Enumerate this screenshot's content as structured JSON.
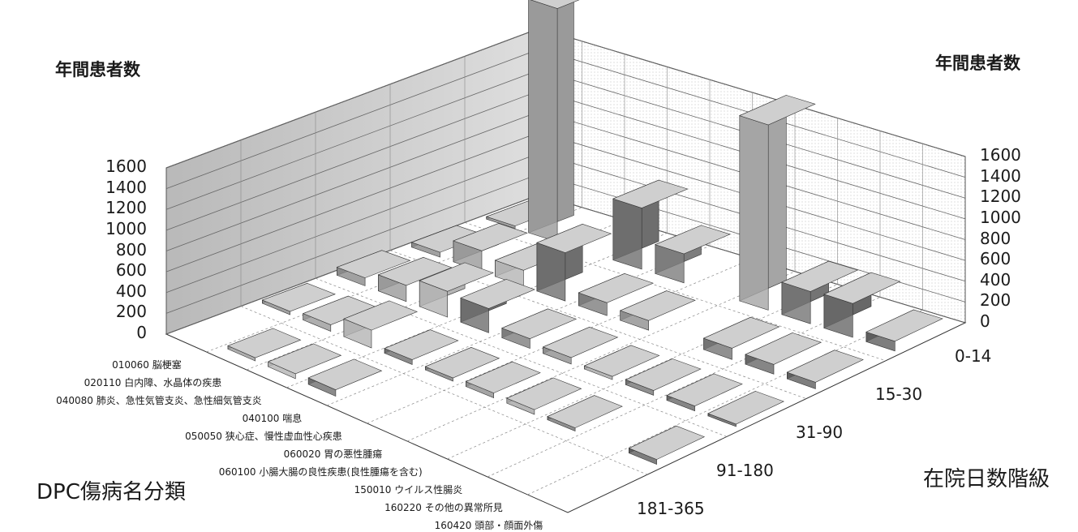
{
  "chart_data": {
    "type": "bar3d",
    "title": "",
    "y_title_left": "年間患者数",
    "y_title_right": "年間患者数",
    "x_axis_title": "DPC傷病名分類",
    "z_axis_title": "在院日数階級",
    "y_ticks": [
      "0",
      "200",
      "400",
      "600",
      "800",
      "1000",
      "1200",
      "1400",
      "1600"
    ],
    "ylim": [
      0,
      1600
    ],
    "categories": [
      "010060 脳梗塞",
      "020110 白内障、水晶体の疾患",
      "040080 肺炎、急性気管支炎、急性細気管支炎",
      "040100 喘息",
      "050050 狭心症、慢性虚血性心疾患",
      "060020 胃の悪性腫瘍",
      "060100 小腸大腸の良性疾患(良性腫瘍を含む)",
      "150010 ウイルス性腸炎",
      "160220 その他の異常所見",
      "160420 頭部・顔面外傷"
    ],
    "stay_bins": [
      "0-14",
      "15-30",
      "31-90",
      "91-180",
      "181-365"
    ],
    "series": [
      {
        "values": [
          10,
          1450,
          0,
          380,
          180,
          0,
          1150,
          200,
          210,
          60
        ]
      },
      {
        "values": [
          30,
          130,
          100,
          300,
          80,
          60,
          0,
          70,
          60,
          40
        ]
      },
      {
        "values": [
          50,
          100,
          160,
          150,
          60,
          40,
          20,
          30,
          30,
          10
        ]
      },
      {
        "values": [
          20,
          40,
          110,
          30,
          20,
          30,
          30,
          20,
          0,
          30
        ]
      },
      {
        "values": [
          0,
          20,
          30,
          40,
          0,
          0,
          0,
          0,
          0,
          0
        ]
      }
    ],
    "grid": true
  }
}
